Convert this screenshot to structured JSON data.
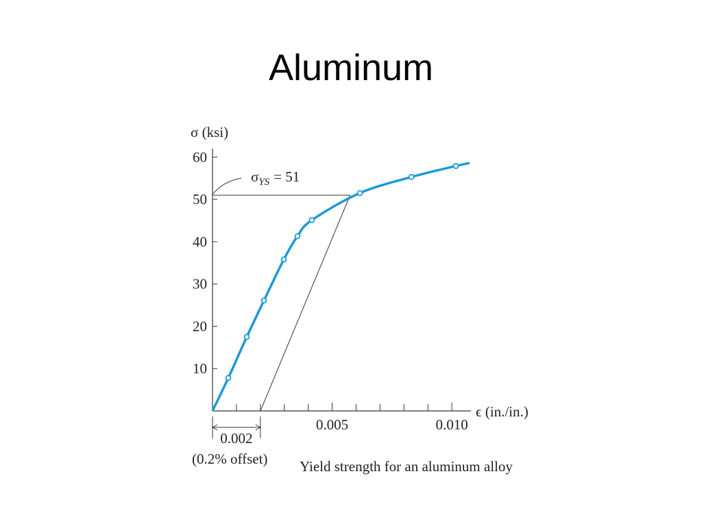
{
  "chart_data": {
    "type": "line",
    "title": "Aluminum",
    "ylabel": "σ (ksi)",
    "xlabel": "ϵ (in./in.)",
    "caption": "Yield strength for an aluminum alloy",
    "xlim": [
      0,
      0.0108
    ],
    "ylim": [
      0,
      62
    ],
    "xticks": [
      {
        "value": 0.005,
        "label": "0.005"
      },
      {
        "value": 0.01,
        "label": "0.010"
      }
    ],
    "xminorticks": [
      0.001,
      0.002,
      0.003,
      0.004,
      0.006,
      0.007,
      0.008,
      0.009
    ],
    "yticks": [
      10,
      20,
      30,
      40,
      50,
      60
    ],
    "series": [
      {
        "color": "#1a9ad6",
        "marker": false,
        "x": [
          0,
          0.00066,
          0.00143,
          0.00215,
          0.00298,
          0.00355,
          0.00415,
          0.00616,
          0.00831,
          0.01017,
          0.01074
        ],
        "values": [
          0,
          7.8,
          17.5,
          26.1,
          35.8,
          41.3,
          45.1,
          51.5,
          55.3,
          57.9,
          58.6
        ]
      },
      {
        "color": "#1a9ad6",
        "marker": true,
        "x": [
          0.00066,
          0.00143,
          0.00215,
          0.00298,
          0.00355,
          0.00415,
          0.00616,
          0.00831,
          0.01017
        ],
        "values": [
          7.8,
          17.5,
          26.1,
          35.8,
          41.3,
          45.1,
          51.5,
          55.3,
          57.9
        ]
      }
    ],
    "yield": {
      "symbol": "σ",
      "subscript": "YS",
      "text": "= 51",
      "value": 51
    },
    "offset_line": {
      "x": [
        0.002,
        0.00575
      ],
      "values": [
        0,
        51
      ]
    },
    "offset": {
      "value": 0.002,
      "label": "0.002",
      "note": "(0.2% offset)"
    }
  }
}
